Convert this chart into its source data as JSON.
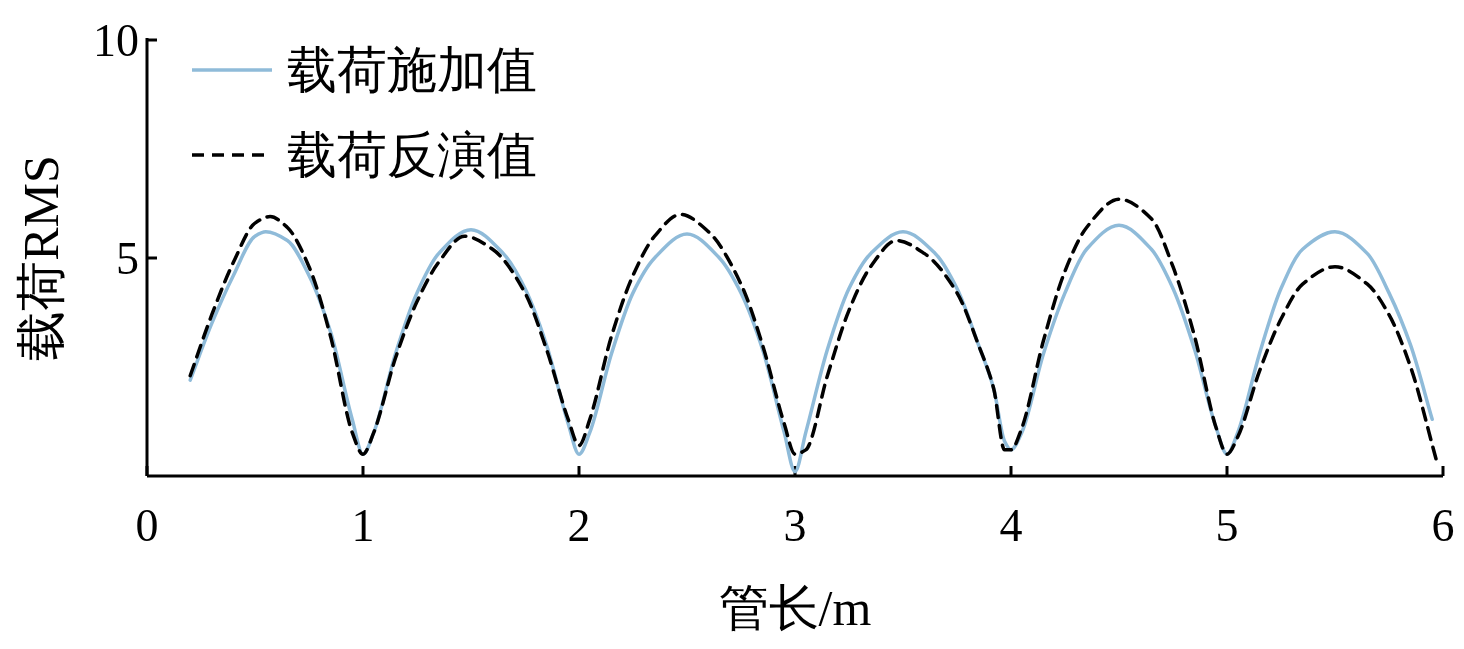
{
  "chart_data": {
    "type": "line",
    "xlabel": "管长/m",
    "ylabel": "载荷RMS",
    "xlim": [
      0,
      6
    ],
    "ylim": [
      0,
      10
    ],
    "xticks": [
      0,
      1,
      2,
      3,
      4,
      5,
      6
    ],
    "yticks": [
      5,
      10
    ],
    "grid": false,
    "legend": "top left",
    "series": [
      {
        "name": "载荷施加值",
        "color": "#8fbbd9",
        "line_style": "solid",
        "x": [
          0.2,
          0.3,
          0.4,
          0.5,
          0.55,
          0.65,
          0.75,
          0.85,
          0.95,
          1.0,
          1.05,
          1.15,
          1.25,
          1.35,
          1.5,
          1.65,
          1.75,
          1.85,
          1.95,
          2.0,
          2.05,
          2.15,
          2.25,
          2.35,
          2.5,
          2.65,
          2.75,
          2.85,
          2.95,
          3.0,
          3.05,
          3.15,
          3.25,
          3.35,
          3.5,
          3.65,
          3.75,
          3.85,
          3.92,
          3.97,
          4.0,
          4.05,
          4.15,
          4.25,
          4.35,
          4.5,
          4.65,
          4.75,
          4.85,
          4.95,
          5.0,
          5.05,
          5.15,
          5.25,
          5.35,
          5.5,
          5.65,
          5.75,
          5.85,
          5.95
        ],
        "values": [
          2.2,
          3.5,
          4.6,
          5.5,
          5.6,
          5.4,
          4.6,
          3.3,
          1.3,
          0.5,
          1.0,
          2.8,
          4.2,
          5.1,
          5.65,
          5.1,
          4.3,
          3.0,
          1.2,
          0.5,
          1.0,
          2.8,
          4.2,
          5.0,
          5.55,
          5.0,
          4.2,
          2.9,
          1.0,
          0.1,
          1.0,
          2.9,
          4.3,
          5.1,
          5.6,
          5.1,
          4.3,
          3.0,
          2.0,
          0.8,
          0.6,
          1.0,
          2.8,
          4.2,
          5.2,
          5.75,
          5.2,
          4.3,
          2.9,
          1.1,
          0.5,
          1.0,
          2.8,
          4.3,
          5.2,
          5.6,
          5.1,
          4.2,
          3.0,
          1.3
        ]
      },
      {
        "name": "载荷反演值",
        "color": "#000000",
        "line_style": "dashed",
        "x": [
          0.2,
          0.3,
          0.4,
          0.5,
          0.57,
          0.65,
          0.75,
          0.85,
          0.95,
          1.0,
          1.05,
          1.15,
          1.25,
          1.35,
          1.47,
          1.6,
          1.75,
          1.85,
          1.95,
          2.0,
          2.05,
          2.15,
          2.25,
          2.35,
          2.47,
          2.6,
          2.75,
          2.85,
          2.95,
          3.0,
          3.05,
          3.15,
          3.25,
          3.35,
          3.47,
          3.6,
          3.75,
          3.85,
          3.92,
          3.97,
          4.0,
          4.05,
          4.15,
          4.25,
          4.35,
          4.5,
          4.65,
          4.75,
          4.85,
          4.95,
          5.0,
          5.05,
          5.15,
          5.25,
          5.35,
          5.5,
          5.65,
          5.75,
          5.85,
          5.97
        ],
        "values": [
          2.3,
          3.7,
          4.9,
          5.8,
          5.95,
          5.7,
          4.8,
          3.2,
          1.0,
          0.5,
          1.0,
          2.7,
          4.0,
          4.9,
          5.5,
          5.2,
          4.2,
          2.9,
          1.3,
          0.7,
          1.3,
          3.2,
          4.6,
          5.5,
          6.0,
          5.6,
          4.4,
          3.0,
          1.2,
          0.5,
          0.6,
          2.3,
          3.8,
          4.8,
          5.4,
          5.1,
          4.2,
          3.0,
          2.0,
          0.6,
          0.6,
          1.1,
          3.1,
          4.7,
          5.7,
          6.35,
          5.9,
          4.8,
          3.2,
          1.1,
          0.5,
          0.9,
          2.4,
          3.6,
          4.4,
          4.8,
          4.4,
          3.7,
          2.5,
          0.35
        ]
      }
    ]
  }
}
